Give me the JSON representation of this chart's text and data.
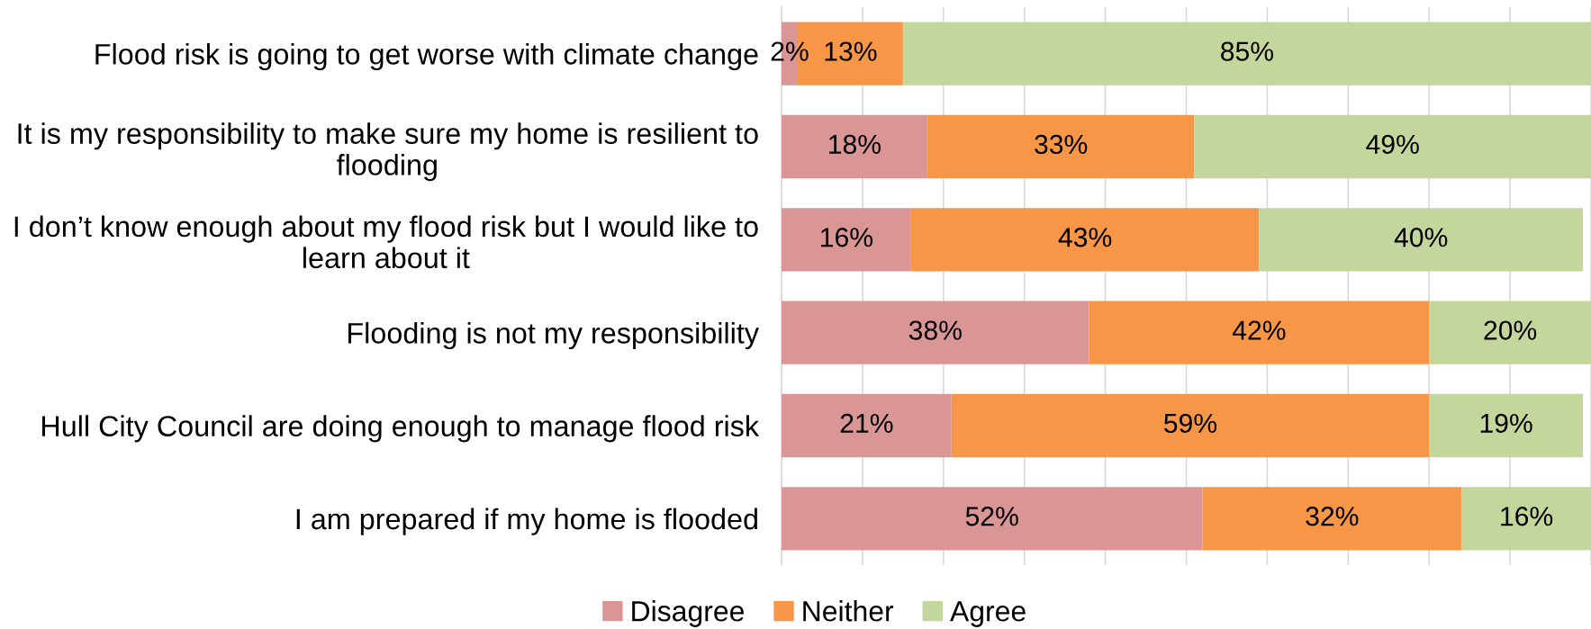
{
  "chart_data": {
    "type": "bar",
    "orientation": "horizontal",
    "stacked": true,
    "categories": [
      "Flood risk is going to get worse with climate change",
      "It is my responsibility to make sure my home is resilient to\nflooding",
      "I don’t know enough about my flood risk but I would like to\nlearn about it",
      "Flooding is not my responsibility",
      "Hull City Council are doing enough to manage flood risk",
      "I am prepared if my home is flooded"
    ],
    "series": [
      {
        "name": "Disagree",
        "color": "#d99694",
        "values": [
          2,
          18,
          16,
          38,
          21,
          52
        ],
        "value_labels": [
          "2%",
          "18%",
          "16%",
          "38%",
          "21%",
          "52%"
        ]
      },
      {
        "name": "Neither",
        "color": "#f79646",
        "values": [
          13,
          33,
          43,
          42,
          59,
          32
        ],
        "value_labels": [
          "13%",
          "33%",
          "43%",
          "42%",
          "59%",
          "32%"
        ]
      },
      {
        "name": "Agree",
        "color": "#c3d69b",
        "values": [
          85,
          49,
          40,
          20,
          19,
          16
        ],
        "value_labels": [
          "85%",
          "49%",
          "40%",
          "20%",
          "19%",
          "16%"
        ]
      }
    ],
    "xlim": [
      0,
      100
    ],
    "xticks": [
      {
        "value": 0,
        "label": null
      },
      {
        "value": 10,
        "label": null
      },
      {
        "value": 20,
        "label": null
      },
      {
        "value": 30,
        "label": null
      },
      {
        "value": 40,
        "label": null
      },
      {
        "value": 50,
        "label": null
      },
      {
        "value": 60,
        "label": null
      },
      {
        "value": 70,
        "label": null
      },
      {
        "value": 80,
        "label": null
      },
      {
        "value": 90,
        "label": null
      },
      {
        "value": 100,
        "label": null
      }
    ],
    "tick_labels": "y",
    "grid": "x",
    "legend": "bottom"
  }
}
